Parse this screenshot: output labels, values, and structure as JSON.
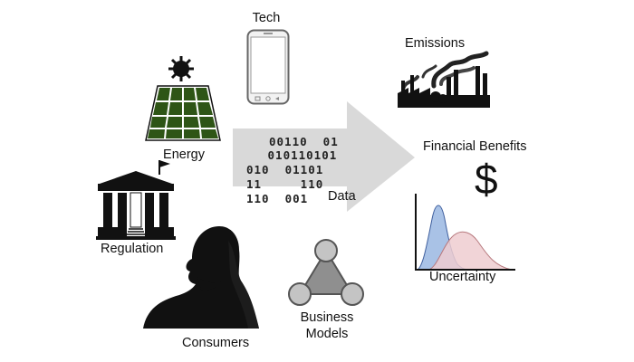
{
  "labels": {
    "tech": "Tech",
    "emissions": "Emissions",
    "energy": "Energy",
    "financial_benefits": "Financial Benefits",
    "dollar_sign": "$",
    "data": "Data",
    "regulation": "Regulation",
    "uncertainty": "Uncertainty",
    "consumers": "Consumers",
    "business_models_line1": "Business",
    "business_models_line2": "Models"
  },
  "binary_lines": [
    "00110  01",
    " 010110101",
    "010  01101",
    "11     110",
    "110  001"
  ],
  "colors": {
    "arrow": "#d9d9d9",
    "solar_panel": "#2e5516",
    "curve_blue": "#a9c2e6",
    "curve_pink": "#efcdd0",
    "triangle": "#8f8f8f",
    "node_fill": "#c4c4c4",
    "silhouette": "#111111"
  },
  "icons": [
    "phone-icon",
    "factory-icon",
    "sun-icon",
    "solar-panel-icon",
    "courthouse-icon",
    "person-silhouette-icon",
    "network-triangle-icon",
    "distribution-curves-icon"
  ]
}
